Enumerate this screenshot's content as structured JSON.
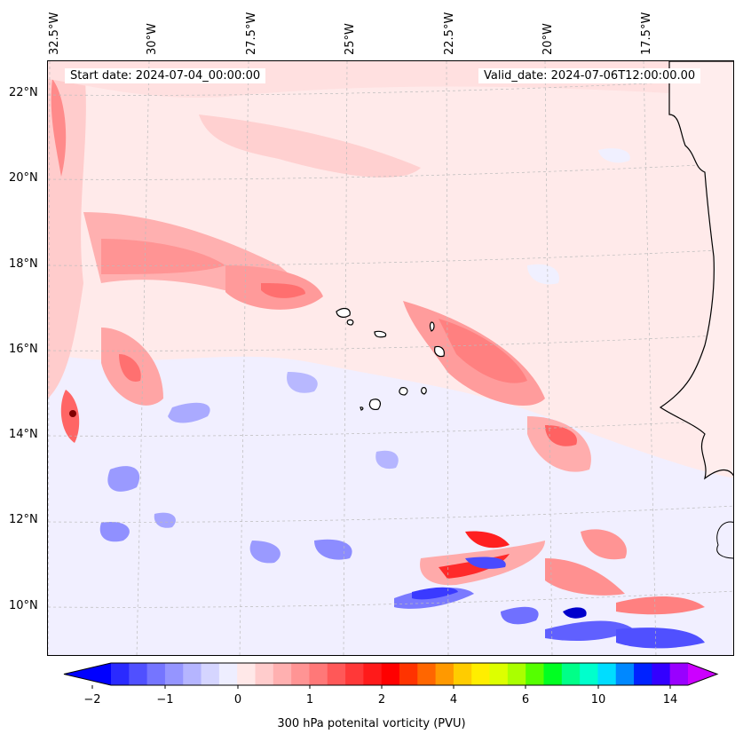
{
  "header": {
    "start_date": "Start date: 2024-07-04_00:00:00",
    "valid_date": "Valid_date: 2024-07-06T12:00:00.00"
  },
  "axes": {
    "top_longitude_labels": [
      "32.5°W",
      "30°W",
      "27.5°W",
      "25°W",
      "22.5°W",
      "20°W",
      "17.5°W"
    ],
    "left_latitude_labels": [
      "22°N",
      "20°N",
      "18°N",
      "16°N",
      "14°N",
      "12°N",
      "10°N"
    ]
  },
  "colorbar": {
    "label": "300 hPa potenital vorticity (PVU)",
    "tick_labels": [
      "−2",
      "−1",
      "0",
      "1",
      "2",
      "4",
      "6",
      "10",
      "14"
    ],
    "colors": [
      "#0000ff",
      "#2a2aff",
      "#5050ff",
      "#7575ff",
      "#9595ff",
      "#b5b5ff",
      "#d5d5ff",
      "#eeeeff",
      "#ffe8e8",
      "#ffcccc",
      "#ffb0b0",
      "#ff9494",
      "#ff7878",
      "#ff5858",
      "#ff3838",
      "#ff1a1a",
      "#ff0000",
      "#ff3300",
      "#ff6600",
      "#ff9900",
      "#ffcc00",
      "#ffee00",
      "#ddff00",
      "#aaff00",
      "#55ff00",
      "#00ff22",
      "#00ff88",
      "#00ffcc",
      "#00ddff",
      "#0088ff",
      "#0022ff",
      "#3300ff",
      "#9900ff",
      "#cc00ff"
    ],
    "extend": "both"
  },
  "map": {
    "land_color": "#ffffff",
    "coast_color": "#000000",
    "background_field_color": "#ffeaea"
  }
}
